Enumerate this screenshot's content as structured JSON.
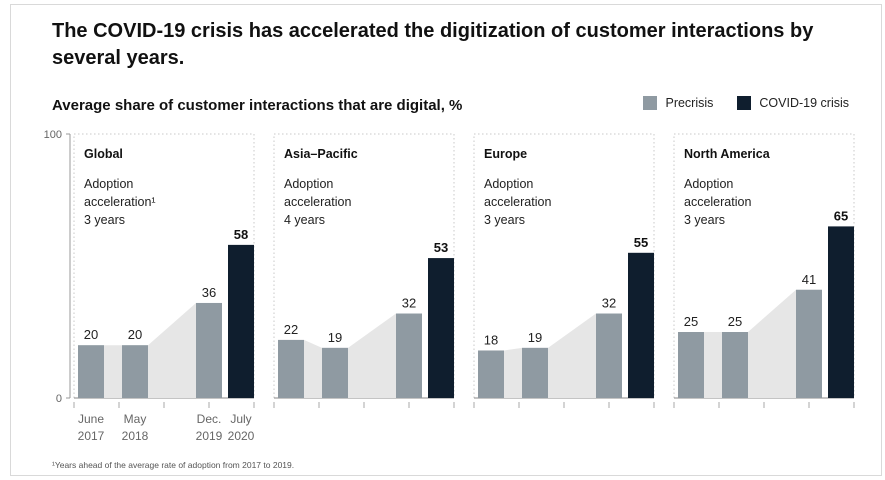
{
  "title": "The COVID-19 crisis has accelerated the digitization of customer interactions by several years.",
  "footnote": "¹Years ahead of the average rate of adoption from 2017 to 2019.",
  "colors": {
    "precrisis": "#8f9aa2",
    "covid": "#0f1e2e",
    "area": "#e6e6e6"
  },
  "chart_data": {
    "type": "bar",
    "title": "Average share of customer interactions that are digital, %",
    "ylim": [
      0,
      100
    ],
    "yticks": [
      0,
      100
    ],
    "legend": {
      "position": "top-right",
      "entries": [
        "Precrisis",
        "COVID-19 crisis"
      ]
    },
    "categories": [
      {
        "line1": "June",
        "line2": "2017"
      },
      {
        "line1": "May",
        "line2": "2018"
      },
      {
        "line1": "Dec.",
        "line2": "2019"
      },
      {
        "line1": "July",
        "line2": "2020"
      }
    ],
    "panels": [
      {
        "name": "Global",
        "note": [
          "Adoption",
          "acceleration¹",
          "3 years"
        ],
        "values": [
          20,
          20,
          36,
          58
        ]
      },
      {
        "name": "Asia–Pacific",
        "note": [
          "Adoption",
          "acceleration",
          "4 years"
        ],
        "values": [
          22,
          19,
          32,
          53
        ]
      },
      {
        "name": "Europe",
        "note": [
          "Adoption",
          "acceleration",
          "3 years"
        ],
        "values": [
          18,
          19,
          32,
          55
        ]
      },
      {
        "name": "North America",
        "note": [
          "Adoption",
          "acceleration",
          "3 years"
        ],
        "values": [
          25,
          25,
          41,
          65
        ]
      }
    ]
  }
}
